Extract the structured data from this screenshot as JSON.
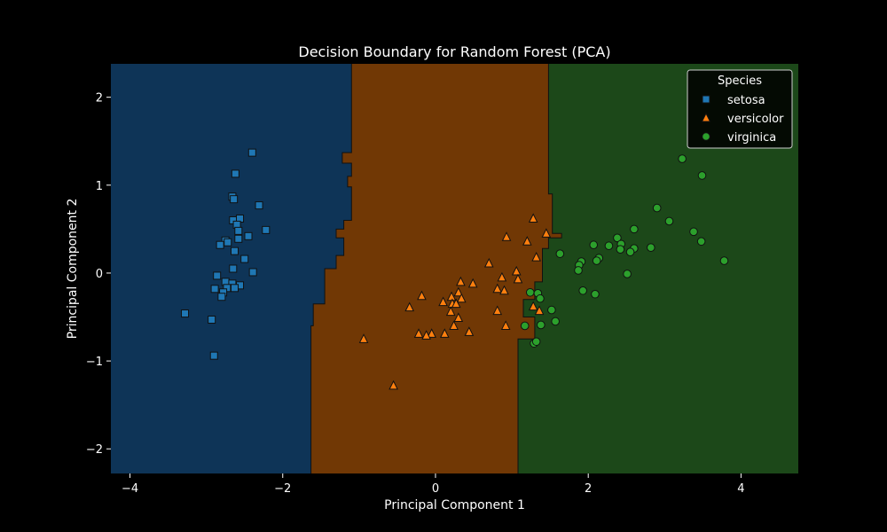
{
  "chart_data": {
    "type": "scatter",
    "title": "Decision Boundary for Random Forest (PCA)",
    "xlabel": "Principal Component 1",
    "ylabel": "Principal Component 2",
    "xlim": [
      -4.25,
      4.75
    ],
    "ylim": [
      -2.28,
      2.38
    ],
    "xticks": [
      -4,
      -2,
      0,
      2,
      4
    ],
    "yticks": [
      -2,
      -1,
      0,
      1,
      2
    ],
    "x_tick_labels": [
      "−4",
      "−2",
      "0",
      "2",
      "4"
    ],
    "y_tick_labels": [
      "−2",
      "−1",
      "0",
      "1",
      "2"
    ],
    "grid": false,
    "legend": {
      "title": "Species",
      "placement": "top-right",
      "entries": [
        "setosa",
        "versicolor",
        "virginica"
      ]
    },
    "colors": {
      "background": "#000000",
      "setosa": "#1f77b4",
      "versicolor": "#ff7f0e",
      "virginica": "#2ca02c",
      "region_setosa": "#0e3457",
      "region_versicolor": "#713805",
      "region_virginica": "#1c4819"
    },
    "regions": [
      {
        "class": "setosa",
        "x_range": [
          -4.25,
          -1.1
        ],
        "note_boundary_bottom": -1.63
      },
      {
        "class": "versicolor",
        "x_range": [
          -1.1,
          1.48
        ],
        "note_boundary_bottom": 1.08
      },
      {
        "class": "virginica",
        "x_range": [
          1.48,
          4.75
        ]
      }
    ],
    "boundary_setosa_versicolor": [
      [
        -1.1,
        2.38
      ],
      [
        -1.1,
        1.37
      ],
      [
        -1.22,
        1.37
      ],
      [
        -1.22,
        1.25
      ],
      [
        -1.1,
        1.25
      ],
      [
        -1.1,
        1.1
      ],
      [
        -1.15,
        1.1
      ],
      [
        -1.15,
        0.98
      ],
      [
        -1.1,
        0.98
      ],
      [
        -1.1,
        0.6
      ],
      [
        -1.2,
        0.6
      ],
      [
        -1.2,
        0.5
      ],
      [
        -1.3,
        0.5
      ],
      [
        -1.3,
        0.4
      ],
      [
        -1.2,
        0.4
      ],
      [
        -1.2,
        0.2
      ],
      [
        -1.3,
        0.2
      ],
      [
        -1.3,
        0.05
      ],
      [
        -1.45,
        0.05
      ],
      [
        -1.45,
        -0.35
      ],
      [
        -1.6,
        -0.35
      ],
      [
        -1.6,
        -0.6
      ],
      [
        -1.63,
        -0.6
      ],
      [
        -1.63,
        -2.28
      ]
    ],
    "boundary_versicolor_virginica": [
      [
        1.48,
        2.38
      ],
      [
        1.48,
        0.9
      ],
      [
        1.53,
        0.9
      ],
      [
        1.53,
        0.45
      ],
      [
        1.65,
        0.45
      ],
      [
        1.65,
        0.4
      ],
      [
        1.48,
        0.4
      ],
      [
        1.48,
        0.28
      ],
      [
        1.4,
        0.28
      ],
      [
        1.4,
        -0.1
      ],
      [
        1.3,
        -0.1
      ],
      [
        1.3,
        -0.3
      ],
      [
        1.15,
        -0.3
      ],
      [
        1.15,
        -0.5
      ],
      [
        1.3,
        -0.5
      ],
      [
        1.3,
        -0.75
      ],
      [
        1.08,
        -0.75
      ],
      [
        1.08,
        -2.28
      ]
    ],
    "series": [
      {
        "name": "setosa",
        "marker": "square",
        "points": [
          [
            -2.4,
            1.37
          ],
          [
            -2.62,
            1.13
          ],
          [
            -2.66,
            0.87
          ],
          [
            -2.64,
            0.84
          ],
          [
            -2.31,
            0.77
          ],
          [
            -2.65,
            0.6
          ],
          [
            -2.56,
            0.62
          ],
          [
            -2.6,
            0.55
          ],
          [
            -2.58,
            0.48
          ],
          [
            -2.22,
            0.49
          ],
          [
            -2.45,
            0.42
          ],
          [
            -2.75,
            0.37
          ],
          [
            -2.72,
            0.35
          ],
          [
            -2.82,
            0.32
          ],
          [
            -2.58,
            0.39
          ],
          [
            -2.63,
            0.25
          ],
          [
            -2.5,
            0.16
          ],
          [
            -2.65,
            0.05
          ],
          [
            -2.39,
            0.01
          ],
          [
            -2.86,
            -0.03
          ],
          [
            -2.75,
            -0.1
          ],
          [
            -2.66,
            -0.12
          ],
          [
            -2.56,
            -0.14
          ],
          [
            -2.63,
            -0.17
          ],
          [
            -2.73,
            -0.17
          ],
          [
            -2.89,
            -0.18
          ],
          [
            -2.78,
            -0.22
          ],
          [
            -2.8,
            -0.27
          ],
          [
            -2.93,
            -0.53
          ],
          [
            -3.28,
            -0.46
          ],
          [
            -2.9,
            -0.94
          ]
        ]
      },
      {
        "name": "versicolor",
        "marker": "triangle",
        "points": [
          [
            1.28,
            0.62
          ],
          [
            1.45,
            0.45
          ],
          [
            0.93,
            0.41
          ],
          [
            1.2,
            0.36
          ],
          [
            1.32,
            0.18
          ],
          [
            0.7,
            0.11
          ],
          [
            1.06,
            0.02
          ],
          [
            0.87,
            -0.05
          ],
          [
            1.08,
            -0.07
          ],
          [
            0.33,
            -0.1
          ],
          [
            0.49,
            -0.12
          ],
          [
            0.81,
            -0.18
          ],
          [
            0.9,
            -0.2
          ],
          [
            0.3,
            -0.22
          ],
          [
            -0.18,
            -0.26
          ],
          [
            0.21,
            -0.27
          ],
          [
            0.34,
            -0.29
          ],
          [
            0.1,
            -0.33
          ],
          [
            0.22,
            -0.35
          ],
          [
            0.27,
            -0.35
          ],
          [
            -0.34,
            -0.39
          ],
          [
            1.28,
            -0.38
          ],
          [
            1.36,
            -0.43
          ],
          [
            0.81,
            -0.43
          ],
          [
            0.2,
            -0.44
          ],
          [
            0.3,
            -0.51
          ],
          [
            0.24,
            -0.6
          ],
          [
            0.92,
            -0.6
          ],
          [
            0.44,
            -0.67
          ],
          [
            -0.22,
            -0.69
          ],
          [
            -0.05,
            -0.69
          ],
          [
            0.12,
            -0.69
          ],
          [
            -0.12,
            -0.71
          ],
          [
            -0.94,
            -0.75
          ],
          [
            -0.55,
            -1.28
          ]
        ]
      },
      {
        "name": "virginica",
        "marker": "circle",
        "points": [
          [
            3.23,
            1.3
          ],
          [
            3.49,
            1.11
          ],
          [
            2.9,
            0.74
          ],
          [
            3.06,
            0.59
          ],
          [
            2.6,
            0.5
          ],
          [
            3.38,
            0.47
          ],
          [
            2.38,
            0.4
          ],
          [
            3.48,
            0.36
          ],
          [
            2.07,
            0.32
          ],
          [
            2.43,
            0.33
          ],
          [
            2.27,
            0.31
          ],
          [
            2.42,
            0.27
          ],
          [
            2.6,
            0.28
          ],
          [
            2.82,
            0.29
          ],
          [
            1.63,
            0.22
          ],
          [
            2.55,
            0.24
          ],
          [
            2.14,
            0.17
          ],
          [
            2.11,
            0.14
          ],
          [
            3.78,
            0.14
          ],
          [
            1.91,
            0.13
          ],
          [
            1.88,
            0.09
          ],
          [
            1.87,
            0.03
          ],
          [
            2.51,
            -0.01
          ],
          [
            1.93,
            -0.2
          ],
          [
            2.09,
            -0.24
          ],
          [
            1.34,
            -0.23
          ],
          [
            1.24,
            -0.22
          ],
          [
            1.37,
            -0.29
          ],
          [
            1.52,
            -0.42
          ],
          [
            1.57,
            -0.55
          ],
          [
            1.17,
            -0.6
          ],
          [
            1.38,
            -0.59
          ],
          [
            1.29,
            -0.8
          ],
          [
            1.32,
            -0.78
          ]
        ]
      }
    ]
  }
}
